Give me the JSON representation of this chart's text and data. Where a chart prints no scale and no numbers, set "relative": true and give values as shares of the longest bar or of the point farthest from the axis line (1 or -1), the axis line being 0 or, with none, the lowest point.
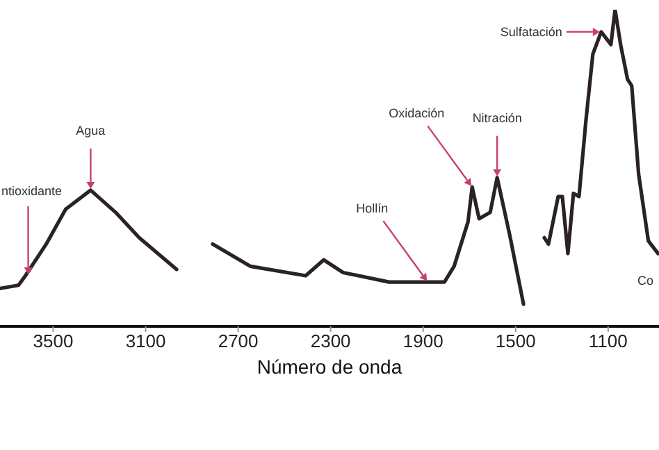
{
  "chart_data": {
    "type": "line",
    "xlabel": "Número de onda",
    "relative": true,
    "tick_labels": "x",
    "marker": "none",
    "line_style": "solid",
    "xlim": [
      3730,
      880
    ],
    "xticks": [
      3500,
      3100,
      2700,
      2300,
      1900,
      1500,
      1100
    ],
    "series": [
      {
        "color": "#2a2226",
        "x": [
          3728,
          3650,
          3620,
          3530,
          3446,
          3338,
          3230,
          3128,
          2966,
          2890,
          2810,
          2648,
          2408,
          2330,
          2246,
          2048,
          1808,
          1766,
          1706,
          1688,
          1658,
          1610,
          1580,
          1526,
          1466,
          1420,
          1376,
          1358,
          1316,
          1298,
          1274,
          1250,
          1226,
          1196,
          1166,
          1130,
          1088,
          1070,
          1046,
          1016,
          998,
          968,
          926,
          884
        ],
        "values": [
          0.12,
          0.13,
          0.16,
          0.26,
          0.37,
          0.43,
          0.36,
          0.28,
          0.18,
          null,
          0.26,
          0.19,
          0.16,
          0.21,
          0.17,
          0.14,
          0.14,
          0.19,
          0.33,
          0.44,
          0.34,
          0.36,
          0.47,
          0.29,
          0.07,
          null,
          0.28,
          0.26,
          0.41,
          0.41,
          0.23,
          0.42,
          0.41,
          0.65,
          0.86,
          0.93,
          0.89,
          1.0,
          0.89,
          0.78,
          0.76,
          0.48,
          0.27,
          0.23
        ]
      }
    ],
    "annotations": [
      {
        "text": "ntioxidante",
        "x": 3608,
        "y": 0.16
      },
      {
        "text": "Agua",
        "x": 3338,
        "y": 0.43
      },
      {
        "text": "Hollín",
        "x": 1880,
        "y": 0.14
      },
      {
        "text": "Oxidación",
        "x": 1688,
        "y": 0.44
      },
      {
        "text": "Nitración",
        "x": 1580,
        "y": 0.47
      },
      {
        "text": "Sulfatación",
        "x": 1130,
        "y": 0.93
      },
      "Co"
    ]
  }
}
